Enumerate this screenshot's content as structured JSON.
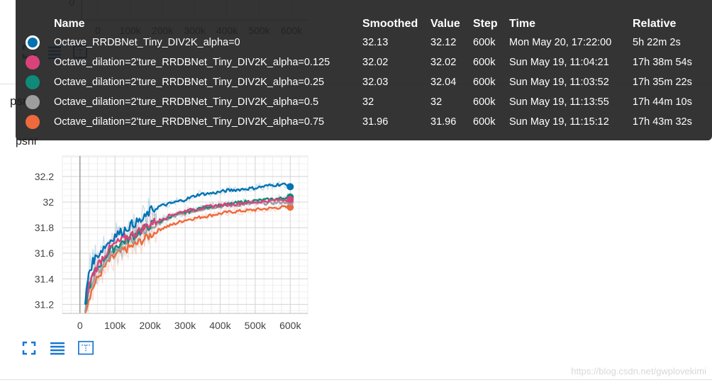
{
  "background_card": {
    "tick_labels": [
      "0",
      "100k",
      "200k",
      "300k",
      "400k",
      "500k",
      "600k"
    ],
    "top_tick": "0",
    "label": "psnr"
  },
  "chart_title": "psnr",
  "tooltip": {
    "headers": {
      "name": "Name",
      "smoothed": "Smoothed",
      "value": "Value",
      "step": "Step",
      "time": "Time",
      "relative": "Relative"
    },
    "rows": [
      {
        "color": "#0072b2",
        "name": "Octave_RRDBNet_Tiny_DIV2K_alpha=0",
        "smoothed": "32.13",
        "value": "32.12",
        "step": "600k",
        "time": "Mon May 20, 17:22:00",
        "relative": "5h 22m 2s"
      },
      {
        "color": "#d9437a",
        "name": "Octave_dilation=2'ture_RRDBNet_Tiny_DIV2K_alpha=0.125",
        "smoothed": "32.02",
        "value": "32.02",
        "step": "600k",
        "time": "Sun May 19, 11:04:21",
        "relative": "17h 38m 54s"
      },
      {
        "color": "#0f8a7a",
        "name": "Octave_dilation=2'ture_RRDBNet_Tiny_DIV2K_alpha=0.25",
        "smoothed": "32.03",
        "value": "32.04",
        "step": "600k",
        "time": "Sun May 19, 11:03:52",
        "relative": "17h 35m 22s"
      },
      {
        "color": "#9e9e9e",
        "name": "Octave_dilation=2'ture_RRDBNet_Tiny_DIV2K_alpha=0.5",
        "smoothed": "32",
        "value": "32",
        "step": "600k",
        "time": "Sun May 19, 11:13:55",
        "relative": "17h 44m 10s"
      },
      {
        "color": "#ee6a3c",
        "name": "Octave_dilation=2'ture_RRDBNet_Tiny_DIV2K_alpha=0.75",
        "smoothed": "31.96",
        "value": "31.96",
        "step": "600k",
        "time": "Sun May 19, 11:15:12",
        "relative": "17h 43m 32s"
      }
    ]
  },
  "watermark": "https://blog.csdn.net/gwplovekimi",
  "icons": {
    "expand": "expand-icon",
    "lines": "data-selection-icon",
    "fit": "fit-domain-icon"
  },
  "chart_data": {
    "type": "line",
    "ylabel": "",
    "xlabel": "",
    "x_ticks": [
      0,
      100000,
      200000,
      300000,
      400000,
      500000,
      600000
    ],
    "x_tick_labels": [
      "0",
      "100k",
      "200k",
      "300k",
      "400k",
      "500k",
      "600k"
    ],
    "y_ticks": [
      31.2,
      31.4,
      31.6,
      31.8,
      32,
      32.2
    ],
    "y_tick_labels": [
      "31.2",
      "31.4",
      "31.6",
      "31.8",
      "32",
      "32.2"
    ],
    "xlim": [
      -50000,
      650000
    ],
    "ylim": [
      31.13,
      32.36
    ],
    "grid": true,
    "series": [
      {
        "name": "Octave_RRDBNet_Tiny_DIV2K_alpha=0",
        "color": "#0072b2",
        "x": [
          15000,
          25000,
          40000,
          60000,
          80000,
          100000,
          120000,
          150000,
          180000,
          200000,
          230000,
          260000,
          300000,
          340000,
          380000,
          420000,
          460000,
          500000,
          540000,
          580000,
          600000
        ],
        "y": [
          31.2,
          31.45,
          31.55,
          31.62,
          31.68,
          31.74,
          31.77,
          31.83,
          31.86,
          31.93,
          31.97,
          31.99,
          32.02,
          32.06,
          32.07,
          32.09,
          32.1,
          32.11,
          32.13,
          32.14,
          32.12
        ]
      },
      {
        "name": "Octave_dilation=2'ture_RRDBNet_Tiny_DIV2K_alpha=0.125",
        "color": "#d9437a",
        "x": [
          15000,
          25000,
          40000,
          60000,
          80000,
          100000,
          130000,
          160000,
          200000,
          230000,
          260000,
          300000,
          340000,
          380000,
          420000,
          460000,
          500000,
          540000,
          580000,
          600000
        ],
        "y": [
          31.18,
          31.35,
          31.45,
          31.55,
          31.62,
          31.67,
          31.72,
          31.76,
          31.83,
          31.86,
          31.9,
          31.93,
          31.95,
          31.97,
          31.98,
          31.99,
          32.0,
          32.01,
          32.02,
          32.02
        ]
      },
      {
        "name": "Octave_dilation=2'ture_RRDBNet_Tiny_DIV2K_alpha=0.25",
        "color": "#0f8a7a",
        "x": [
          15000,
          25000,
          40000,
          60000,
          80000,
          100000,
          130000,
          160000,
          200000,
          230000,
          260000,
          300000,
          340000,
          380000,
          420000,
          460000,
          500000,
          540000,
          580000,
          600000
        ],
        "y": [
          31.17,
          31.33,
          31.44,
          31.53,
          31.6,
          31.65,
          31.7,
          31.75,
          31.82,
          31.85,
          31.89,
          31.92,
          31.95,
          31.97,
          31.98,
          32.0,
          32.01,
          32.02,
          32.03,
          32.04
        ]
      },
      {
        "name": "Octave_dilation=2'ture_RRDBNet_Tiny_DIV2K_alpha=0.5",
        "color": "#9e9e9e",
        "x": [
          15000,
          25000,
          40000,
          60000,
          80000,
          100000,
          130000,
          160000,
          200000,
          230000,
          260000,
          300000,
          340000,
          380000,
          420000,
          460000,
          500000,
          540000,
          580000,
          600000
        ],
        "y": [
          31.16,
          31.3,
          31.42,
          31.5,
          31.58,
          31.63,
          31.68,
          31.73,
          31.8,
          31.84,
          31.88,
          31.91,
          31.94,
          31.96,
          31.97,
          31.98,
          31.99,
          31.99,
          32.0,
          32.0
        ]
      },
      {
        "name": "Octave_dilation=2'ture_RRDBNet_Tiny_DIV2K_alpha=0.75",
        "color": "#ee6a3c",
        "x": [
          15000,
          25000,
          40000,
          60000,
          80000,
          100000,
          130000,
          160000,
          200000,
          230000,
          260000,
          300000,
          340000,
          380000,
          420000,
          460000,
          500000,
          540000,
          580000,
          600000
        ],
        "y": [
          31.15,
          31.25,
          31.35,
          31.45,
          31.53,
          31.58,
          31.63,
          31.67,
          31.74,
          31.79,
          31.82,
          31.86,
          31.88,
          31.9,
          31.92,
          31.93,
          31.94,
          31.95,
          31.96,
          31.96
        ]
      }
    ]
  }
}
